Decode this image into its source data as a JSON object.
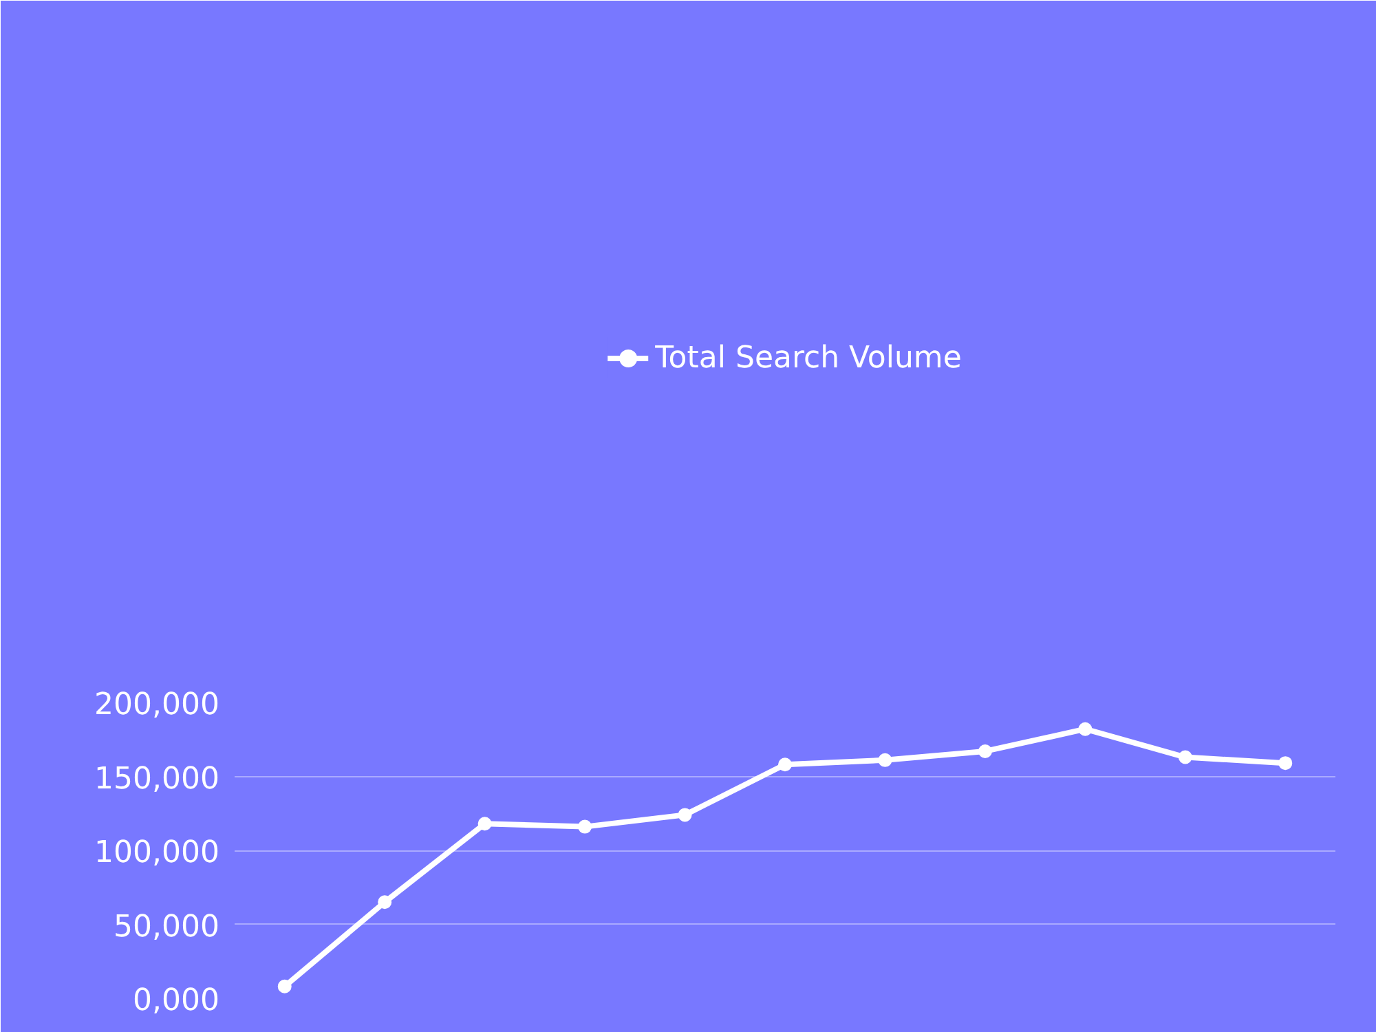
{
  "chart_data": {
    "type": "line",
    "categories": [
      null,
      null,
      null,
      null,
      null,
      null,
      null,
      null,
      null,
      null,
      null
    ],
    "series": [
      {
        "name": "Total Search Volume",
        "color": "#ffffff",
        "values": [
          8000,
          65000,
          118000,
          116000,
          124000,
          158000,
          161000,
          167000,
          182000,
          163000,
          159000
        ]
      }
    ],
    "ylim": [
      0,
      200000
    ],
    "yticks": [
      {
        "value": 0,
        "label": "0,000"
      },
      {
        "value": 50000,
        "label": "50,000"
      },
      {
        "value": 100000,
        "label": "100,000"
      },
      {
        "value": 150000,
        "label": "150,000"
      },
      {
        "value": 200000,
        "label": "200,000"
      }
    ],
    "grid": "y",
    "legend": "top",
    "marker": "circle",
    "line_style": "solid"
  }
}
